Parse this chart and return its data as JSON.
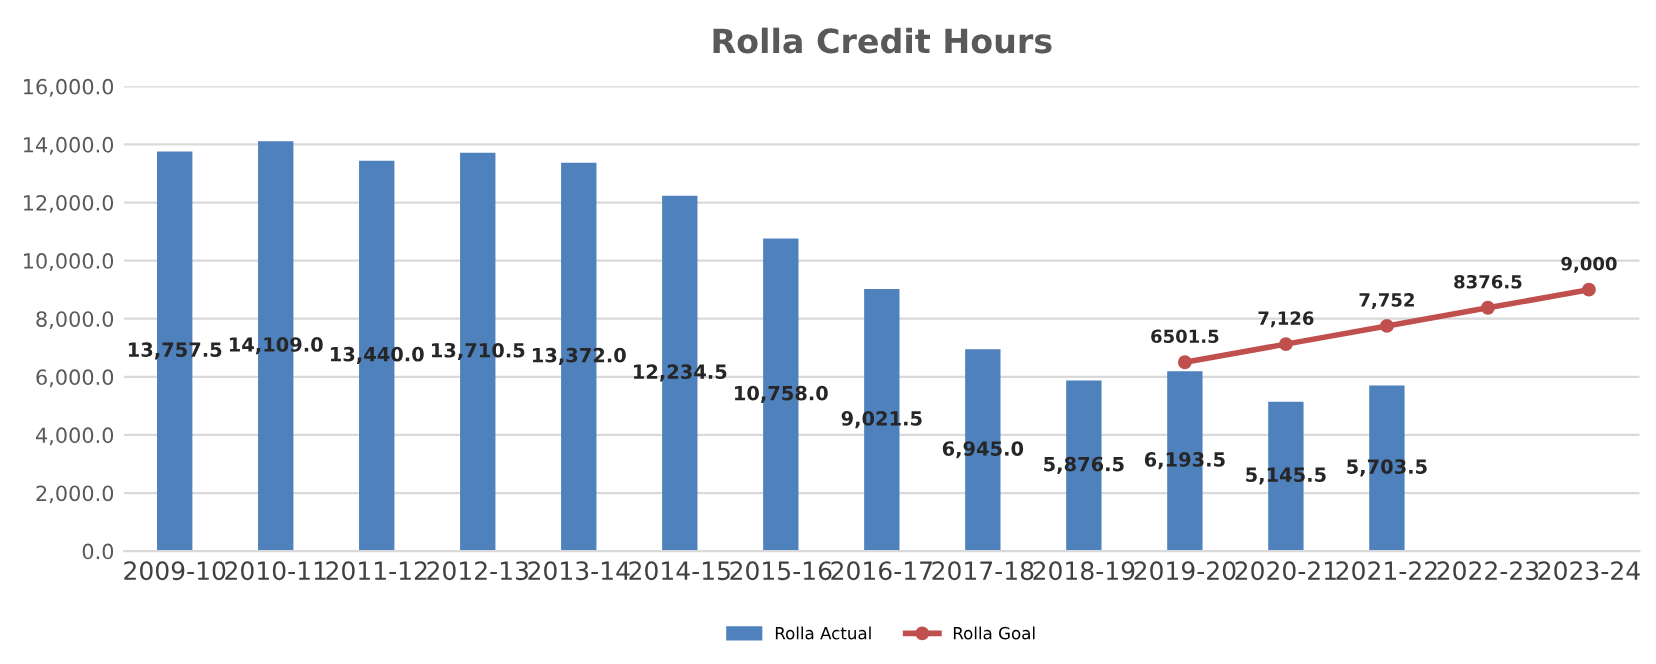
{
  "chart_data": {
    "type": "bar",
    "title": "Rolla Credit Hours",
    "categories": [
      "2009-10",
      "2010-11",
      "2011-12",
      "2012-13",
      "2013-14",
      "2014-15",
      "2015-16",
      "2016-17",
      "2017-18",
      "2018-19",
      "2019-20",
      "2020-21",
      "2021-22",
      "2022-23",
      "2023-24"
    ],
    "series": [
      {
        "name": "Rolla Actual",
        "color": "#4f81bd",
        "values": [
          13757.5,
          14109.0,
          13440.0,
          13710.5,
          13372.0,
          12234.5,
          10758.0,
          9021.5,
          6945.0,
          5876.5,
          6193.5,
          5145.5,
          5703.5,
          null,
          null
        ],
        "value_labels": [
          "13,757.5",
          "14,109.0",
          "13,440.0",
          "13,710.5",
          "13,372.0",
          "12,234.5",
          "10,758.0",
          "9,021.5",
          "6,945.0",
          "5,876.5",
          "6,193.5",
          "5,145.5",
          "5,703.5",
          null,
          null
        ]
      },
      {
        "name": "Rolla Goal",
        "type": "line",
        "color": "#c0504d",
        "marker": "circle",
        "values": [
          null,
          null,
          null,
          null,
          null,
          null,
          null,
          null,
          null,
          null,
          6501.5,
          7126,
          7752,
          8376.5,
          9000
        ],
        "value_labels": [
          null,
          null,
          null,
          null,
          null,
          null,
          null,
          null,
          null,
          null,
          "6501.5",
          "7,126",
          "7,752",
          "8376.5",
          "9,000"
        ]
      }
    ],
    "ylim": [
      0,
      16000
    ],
    "yticks": [
      {
        "value": 0,
        "label": "0.0"
      },
      {
        "value": 2000,
        "label": "2,000.0"
      },
      {
        "value": 4000,
        "label": "4,000.0"
      },
      {
        "value": 6000,
        "label": "6,000.0"
      },
      {
        "value": 8000,
        "label": "8,000.0"
      },
      {
        "value": 10000,
        "label": "10,000.0"
      },
      {
        "value": 12000,
        "label": "12,000.0"
      },
      {
        "value": 14000,
        "label": "14,000.0"
      },
      {
        "value": 16000,
        "label": "16,000.0"
      }
    ],
    "grid": "y",
    "legend": "bottom"
  }
}
